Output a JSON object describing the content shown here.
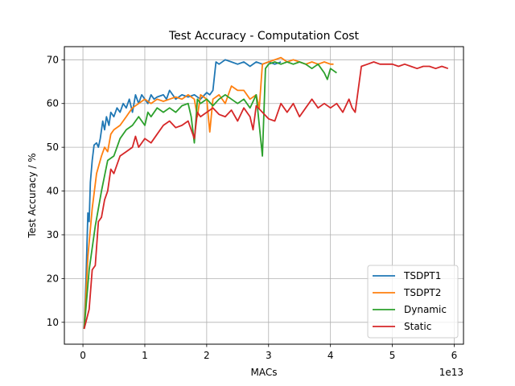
{
  "chart_data": {
    "type": "line",
    "title": "Test Accuracy - Computation Cost",
    "xlabel": "MACs",
    "ylabel": "Test Accuracy / %",
    "x_offset_label": "1e13",
    "xlim": [
      -0.3,
      6.15
    ],
    "ylim": [
      5,
      73
    ],
    "x_ticks": [
      0,
      1,
      2,
      3,
      4,
      5,
      6
    ],
    "y_ticks": [
      10,
      20,
      30,
      40,
      50,
      60,
      70
    ],
    "grid": true,
    "legend_position": "bottom-right",
    "series": [
      {
        "name": "TSDPT1",
        "color": "#1f77b4",
        "points": [
          [
            0.02,
            8.5
          ],
          [
            0.05,
            20
          ],
          [
            0.08,
            35
          ],
          [
            0.1,
            33
          ],
          [
            0.12,
            42
          ],
          [
            0.15,
            47
          ],
          [
            0.18,
            50.5
          ],
          [
            0.22,
            51
          ],
          [
            0.25,
            50
          ],
          [
            0.28,
            52
          ],
          [
            0.32,
            56
          ],
          [
            0.35,
            54
          ],
          [
            0.38,
            57
          ],
          [
            0.42,
            55
          ],
          [
            0.45,
            58
          ],
          [
            0.5,
            57
          ],
          [
            0.55,
            59
          ],
          [
            0.6,
            58
          ],
          [
            0.65,
            60
          ],
          [
            0.7,
            59
          ],
          [
            0.75,
            61
          ],
          [
            0.8,
            58
          ],
          [
            0.85,
            62
          ],
          [
            0.9,
            60
          ],
          [
            0.95,
            62
          ],
          [
            1.0,
            61
          ],
          [
            1.05,
            60
          ],
          [
            1.1,
            62
          ],
          [
            1.15,
            61
          ],
          [
            1.2,
            61.5
          ],
          [
            1.3,
            62
          ],
          [
            1.35,
            61
          ],
          [
            1.4,
            63
          ],
          [
            1.45,
            62
          ],
          [
            1.5,
            61
          ],
          [
            1.6,
            62
          ],
          [
            1.7,
            61.5
          ],
          [
            1.8,
            62
          ],
          [
            1.9,
            61
          ],
          [
            2.0,
            62.5
          ],
          [
            2.05,
            62
          ],
          [
            2.1,
            63
          ],
          [
            2.15,
            69.5
          ],
          [
            2.2,
            69
          ],
          [
            2.3,
            70
          ],
          [
            2.4,
            69.5
          ],
          [
            2.5,
            69
          ],
          [
            2.6,
            69.5
          ],
          [
            2.7,
            68.5
          ],
          [
            2.8,
            69.5
          ],
          [
            2.9,
            69
          ],
          [
            3.0,
            69.5
          ],
          [
            3.1,
            69
          ],
          [
            3.2,
            69.5
          ]
        ]
      },
      {
        "name": "TSDPT2",
        "color": "#ff7f0e",
        "points": [
          [
            0.02,
            8.5
          ],
          [
            0.08,
            25
          ],
          [
            0.15,
            36
          ],
          [
            0.22,
            44
          ],
          [
            0.3,
            48
          ],
          [
            0.35,
            50
          ],
          [
            0.4,
            49
          ],
          [
            0.45,
            53
          ],
          [
            0.5,
            54
          ],
          [
            0.6,
            55
          ],
          [
            0.7,
            57
          ],
          [
            0.75,
            58
          ],
          [
            0.8,
            59
          ],
          [
            0.9,
            60
          ],
          [
            1.0,
            61
          ],
          [
            1.1,
            60
          ],
          [
            1.2,
            61
          ],
          [
            1.3,
            60.5
          ],
          [
            1.4,
            61
          ],
          [
            1.5,
            61.5
          ],
          [
            1.6,
            61
          ],
          [
            1.7,
            62
          ],
          [
            1.8,
            61
          ],
          [
            1.85,
            57
          ],
          [
            1.9,
            62
          ],
          [
            2.0,
            61
          ],
          [
            2.05,
            53.5
          ],
          [
            2.1,
            61
          ],
          [
            2.2,
            62
          ],
          [
            2.3,
            60
          ],
          [
            2.4,
            64
          ],
          [
            2.5,
            63
          ],
          [
            2.6,
            63
          ],
          [
            2.7,
            61
          ],
          [
            2.8,
            62
          ],
          [
            2.85,
            59
          ],
          [
            2.9,
            69
          ],
          [
            3.0,
            69.5
          ],
          [
            3.1,
            70
          ],
          [
            3.2,
            70.5
          ],
          [
            3.3,
            69.5
          ],
          [
            3.4,
            70
          ],
          [
            3.5,
            69.5
          ],
          [
            3.6,
            69
          ],
          [
            3.7,
            69.5
          ],
          [
            3.8,
            69
          ],
          [
            3.9,
            69.5
          ],
          [
            4.0,
            69
          ],
          [
            4.05,
            69
          ]
        ]
      },
      {
        "name": "Dynamic",
        "color": "#2ca02c",
        "points": [
          [
            0.02,
            8.5
          ],
          [
            0.1,
            22
          ],
          [
            0.2,
            32
          ],
          [
            0.3,
            40
          ],
          [
            0.4,
            47
          ],
          [
            0.5,
            48
          ],
          [
            0.55,
            50
          ],
          [
            0.6,
            52
          ],
          [
            0.7,
            54
          ],
          [
            0.8,
            55
          ],
          [
            0.9,
            57
          ],
          [
            1.0,
            55
          ],
          [
            1.05,
            58
          ],
          [
            1.1,
            57
          ],
          [
            1.2,
            59
          ],
          [
            1.3,
            58
          ],
          [
            1.4,
            59
          ],
          [
            1.5,
            58
          ],
          [
            1.6,
            59.5
          ],
          [
            1.7,
            60
          ],
          [
            1.75,
            57
          ],
          [
            1.8,
            51
          ],
          [
            1.85,
            61
          ],
          [
            1.9,
            60
          ],
          [
            2.0,
            61
          ],
          [
            2.1,
            59.5
          ],
          [
            2.2,
            61
          ],
          [
            2.3,
            62
          ],
          [
            2.4,
            61
          ],
          [
            2.5,
            60
          ],
          [
            2.6,
            61
          ],
          [
            2.7,
            59
          ],
          [
            2.8,
            62
          ],
          [
            2.9,
            48
          ],
          [
            2.95,
            68
          ],
          [
            3.0,
            69
          ],
          [
            3.1,
            69.5
          ],
          [
            3.2,
            69
          ],
          [
            3.3,
            69.5
          ],
          [
            3.4,
            69
          ],
          [
            3.5,
            69.5
          ],
          [
            3.6,
            69
          ],
          [
            3.7,
            68
          ],
          [
            3.8,
            69
          ],
          [
            3.9,
            67
          ],
          [
            3.95,
            65.5
          ],
          [
            4.0,
            68
          ],
          [
            4.1,
            67
          ]
        ]
      },
      {
        "name": "Static",
        "color": "#d62728",
        "points": [
          [
            0.02,
            8.5
          ],
          [
            0.1,
            13
          ],
          [
            0.15,
            22
          ],
          [
            0.2,
            23
          ],
          [
            0.25,
            33
          ],
          [
            0.3,
            34
          ],
          [
            0.35,
            38
          ],
          [
            0.4,
            40
          ],
          [
            0.45,
            45
          ],
          [
            0.5,
            44
          ],
          [
            0.6,
            48
          ],
          [
            0.7,
            49
          ],
          [
            0.8,
            50
          ],
          [
            0.85,
            52.5
          ],
          [
            0.9,
            50
          ],
          [
            1.0,
            52
          ],
          [
            1.1,
            51
          ],
          [
            1.2,
            53
          ],
          [
            1.3,
            55
          ],
          [
            1.4,
            56
          ],
          [
            1.5,
            54.5
          ],
          [
            1.6,
            55
          ],
          [
            1.7,
            56
          ],
          [
            1.8,
            52
          ],
          [
            1.85,
            58
          ],
          [
            1.9,
            57
          ],
          [
            2.0,
            58
          ],
          [
            2.1,
            59
          ],
          [
            2.2,
            57.5
          ],
          [
            2.3,
            57
          ],
          [
            2.4,
            58.5
          ],
          [
            2.5,
            56
          ],
          [
            2.6,
            59
          ],
          [
            2.7,
            57
          ],
          [
            2.75,
            54
          ],
          [
            2.8,
            59.5
          ],
          [
            2.9,
            58
          ],
          [
            3.0,
            56.5
          ],
          [
            3.1,
            56
          ],
          [
            3.2,
            60
          ],
          [
            3.3,
            58
          ],
          [
            3.4,
            60
          ],
          [
            3.5,
            57
          ],
          [
            3.6,
            59
          ],
          [
            3.7,
            61
          ],
          [
            3.8,
            59
          ],
          [
            3.9,
            60
          ],
          [
            4.0,
            59
          ],
          [
            4.1,
            60
          ],
          [
            4.2,
            58
          ],
          [
            4.3,
            61
          ],
          [
            4.35,
            59
          ],
          [
            4.4,
            58
          ],
          [
            4.5,
            68.5
          ],
          [
            4.6,
            69
          ],
          [
            4.7,
            69.5
          ],
          [
            4.8,
            69
          ],
          [
            4.9,
            69
          ],
          [
            5.0,
            69
          ],
          [
            5.1,
            68.5
          ],
          [
            5.2,
            69
          ],
          [
            5.3,
            68.5
          ],
          [
            5.4,
            68
          ],
          [
            5.5,
            68.5
          ],
          [
            5.6,
            68.5
          ],
          [
            5.7,
            68
          ],
          [
            5.8,
            68.5
          ],
          [
            5.9,
            68
          ]
        ]
      }
    ]
  }
}
